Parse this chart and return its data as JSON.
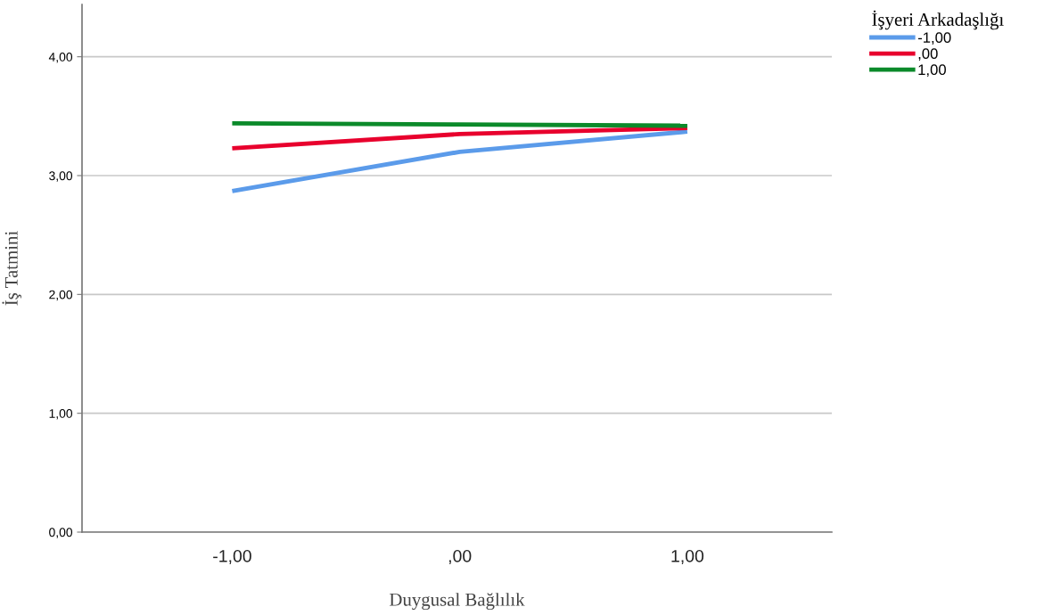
{
  "chart_data": {
    "type": "line",
    "xlabel": "Duygusal Bağlılık",
    "ylabel": "İş Tatmini",
    "legend_title": "İşyeri Arkadaşlığı",
    "categories": [
      "-1,00",
      ",00",
      "1,00"
    ],
    "series": [
      {
        "name": "-1,00",
        "color": "#5b9bea",
        "values": [
          2.87,
          3.2,
          3.37
        ]
      },
      {
        "name": ",00",
        "color": "#e8002d",
        "values": [
          3.23,
          3.35,
          3.4
        ]
      },
      {
        "name": "1,00",
        "color": "#0b8a2a",
        "values": [
          3.44,
          3.43,
          3.42
        ]
      }
    ],
    "ylim": [
      0,
      4.44
    ],
    "yticks": [
      {
        "value": 0,
        "label": "0,00"
      },
      {
        "value": 1,
        "label": "1,00"
      },
      {
        "value": 2,
        "label": "2,00"
      },
      {
        "value": 3,
        "label": "3,00"
      },
      {
        "value": 4,
        "label": "4,00"
      }
    ],
    "grid": "y",
    "legend": "top right",
    "marker": "none",
    "line_style": "solid"
  }
}
